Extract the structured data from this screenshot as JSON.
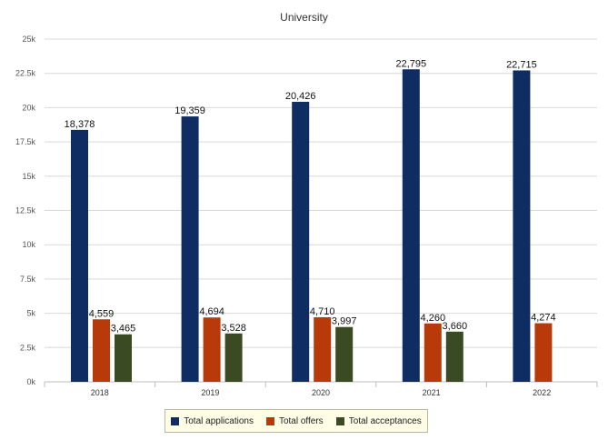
{
  "chart_data": {
    "type": "bar",
    "title": "University",
    "xlabel": "",
    "ylabel": "",
    "categories": [
      "2018",
      "2019",
      "2020",
      "2021",
      "2022"
    ],
    "series": [
      {
        "name": "Total applications",
        "color": "#0f2d63",
        "values": [
          18378,
          19359,
          20426,
          22795,
          22715
        ]
      },
      {
        "name": "Total offers",
        "color": "#b83a0b",
        "values": [
          4559,
          4694,
          4710,
          4260,
          4274
        ]
      },
      {
        "name": "Total acceptances",
        "color": "#3a4a22",
        "values": [
          3465,
          3528,
          3997,
          3660,
          null
        ]
      }
    ],
    "data_labels": [
      [
        "18,378",
        "19,359",
        "20,426",
        "22,795",
        "22,715"
      ],
      [
        "4,559",
        "4,694",
        "4,710",
        "4,260",
        "4,274"
      ],
      [
        "3,465",
        "3,528",
        "3,997",
        "3,660",
        null
      ]
    ],
    "ylim": [
      0,
      25000
    ],
    "yticks": [
      0,
      2500,
      5000,
      7500,
      10000,
      12500,
      15000,
      17500,
      20000,
      22500,
      25000
    ],
    "ytick_labels": [
      "0k",
      "2.5k",
      "5k",
      "7.5k",
      "10k",
      "12.5k",
      "15k",
      "17.5k",
      "20k",
      "22.5k",
      "25k"
    ],
    "grid": true,
    "legend_position": "bottom"
  }
}
